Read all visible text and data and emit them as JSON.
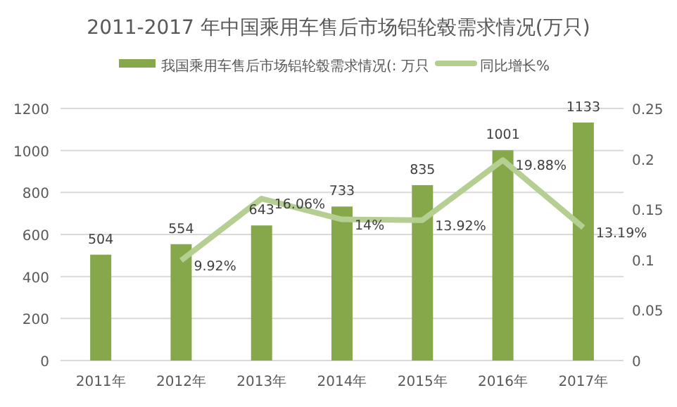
{
  "chart_data": {
    "type": "bar",
    "title": "2011-2017 年中国乘用车售后市场铝轮毂需求情况(万只)",
    "categories": [
      "2011年",
      "2012年",
      "2013年",
      "2014年",
      "2015年",
      "2016年",
      "2017年"
    ],
    "series": [
      {
        "name": "我国乘用车售后市场铝轮毂需求情况(: 万只",
        "color": "#86a84b",
        "values": [
          504,
          554,
          643,
          733,
          835,
          1001,
          1133
        ],
        "value_labels": [
          "504",
          "554",
          "643",
          "733",
          "835",
          "1001",
          "1133"
        ]
      },
      {
        "name": "同比增长%",
        "type": "line",
        "axis": "y2",
        "color": "#b5cf93",
        "values": [
          null,
          0.0992,
          0.1606,
          0.14,
          0.1392,
          0.1988,
          0.1319
        ],
        "value_labels": [
          null,
          "9.92%",
          "16.06%",
          "14%",
          "13.92%",
          "19.88%",
          "13.19%"
        ]
      }
    ],
    "ylim": [
      0,
      1200
    ],
    "yticks": [
      0,
      200,
      400,
      600,
      800,
      1000,
      1200
    ],
    "y2lim": [
      0,
      0.25
    ],
    "y2ticks": [
      0,
      0.05,
      0.1,
      0.15,
      0.2,
      0.25
    ],
    "grid": "y",
    "legend": "top",
    "marker": "none",
    "line_style": "solid"
  }
}
